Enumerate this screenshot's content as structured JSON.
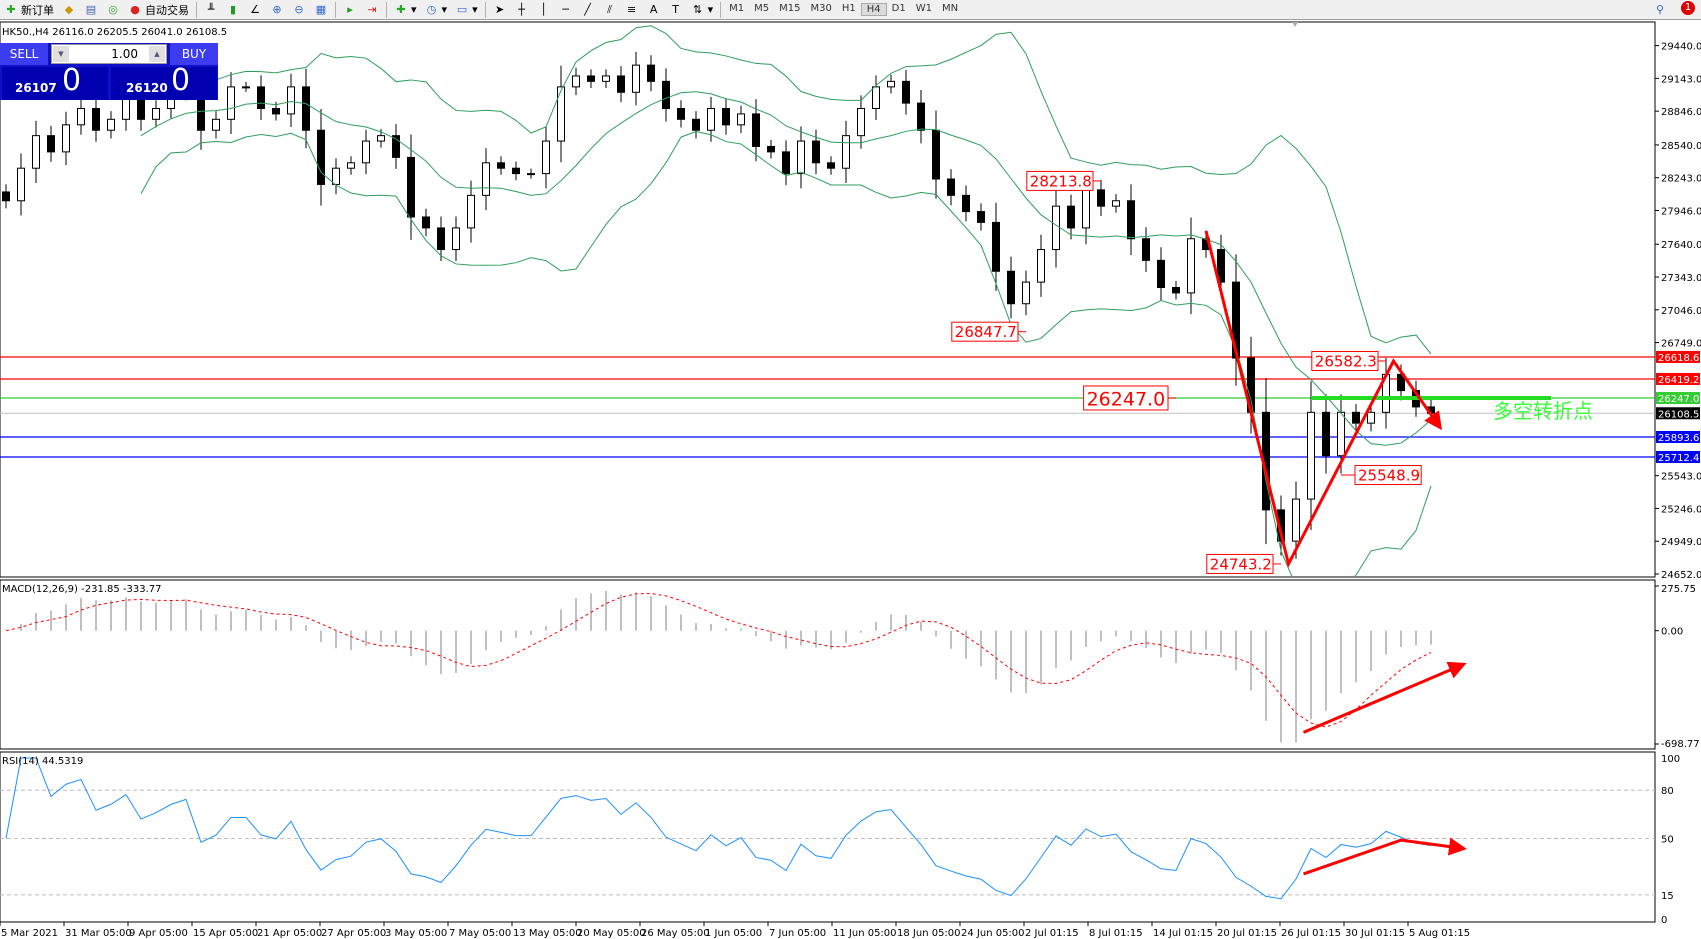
{
  "toolbar": {
    "new_order": "新订单",
    "auto_trading": "自动交易",
    "timeframes": [
      "M1",
      "M5",
      "M15",
      "M30",
      "H1",
      "H4",
      "D1",
      "W1",
      "MN"
    ],
    "active_timeframe": "H4",
    "alert_count": "1"
  },
  "chart_header": "HK50.,H4  26116.0 26205.5 26041.0 26108.5",
  "trade_panel": {
    "sell_label": "SELL",
    "buy_label": "BUY",
    "lot": "1.00",
    "sell_big": "26107",
    "sell_frac": "0",
    "buy_big": "26120",
    "buy_frac": "0"
  },
  "colors": {
    "bull": "#ffffff",
    "bear": "#000000",
    "bands": "#2e9e5e",
    "annotation": "#ff0000",
    "turn_text": "#33ff33",
    "macd_signal": "#ff0000",
    "macd_hist": "#c0c0c0",
    "rsi": "#1e90ff"
  },
  "chart_data": [
    {
      "type": "candlestick",
      "symbol": "HK50.",
      "timeframe": "H4",
      "closes": [
        28034,
        28329,
        28624,
        28477,
        28722,
        28870,
        28673,
        28772,
        28968,
        28772,
        28870,
        29017,
        29116,
        28673,
        28772,
        29066,
        29066,
        28870,
        28821,
        29066,
        28673,
        28182,
        28329,
        28378,
        28575,
        28624,
        28427,
        27887,
        27788,
        27592,
        27788,
        28083,
        28378,
        28329,
        28280,
        28280,
        28575,
        29066,
        29165,
        29116,
        29165,
        29017,
        29263,
        29116,
        28870,
        28772,
        28673,
        28870,
        28722,
        28821,
        28526,
        28477,
        28280,
        28575,
        28378,
        28329,
        28624,
        28870,
        29066,
        29116,
        28919,
        28673,
        28231,
        28083,
        27936,
        27838,
        27395,
        27101,
        27297,
        27592,
        27985,
        27788,
        28133,
        27985,
        28034,
        27690,
        27494,
        27248,
        27199,
        27690,
        27592,
        27297,
        26609,
        26117,
        25233,
        24950,
        25331,
        26117,
        25724,
        26117,
        26019,
        26117,
        26461,
        26314,
        26166,
        26108.5
      ],
      "ylim": [
        24652,
        29440
      ],
      "y_ticks": [
        "29440.0",
        "29143.0",
        "28846.0",
        "28540.0",
        "28243.0",
        "27946.0",
        "27640.0",
        "27343.0",
        "27046.0",
        "26749.0",
        "25543.0",
        "25246.0",
        "24949.0",
        "24652.0"
      ],
      "overlay": "Bollinger Bands",
      "hlines": [
        {
          "price": 26618.6,
          "label": "26618.6",
          "color": "#ff0000"
        },
        {
          "price": 26419.2,
          "label": "26419.2",
          "color": "#ff0000"
        },
        {
          "price": 26247.0,
          "label": "26247.0",
          "color": "#33cc33"
        },
        {
          "price": 26108.5,
          "label": "26108.5",
          "color": "#c0c0c0",
          "tag": "#000000"
        },
        {
          "price": 25893.6,
          "label": "25893.6",
          "color": "#0000ff"
        },
        {
          "price": 25712.4,
          "label": "25712.4",
          "color": "#0000ff"
        }
      ],
      "annotations": [
        {
          "text": "28213.8",
          "index": 73,
          "price": 28213.8,
          "side": "left"
        },
        {
          "text": "26847.7",
          "index": 68,
          "price": 26847.7,
          "side": "left"
        },
        {
          "text": "26582.3",
          "index": 92,
          "price": 26582.3,
          "side": "left"
        },
        {
          "text": "26247.0",
          "index": 78,
          "price": 26247.0,
          "side": "left",
          "big": true
        },
        {
          "text": "25548.9",
          "index": 89,
          "price": 25548.9,
          "side": "right"
        },
        {
          "text": "24743.2",
          "index": 85,
          "price": 24743.2,
          "side": "left"
        }
      ],
      "turn_label": "多空转折点",
      "turn_line": {
        "price": 26247.0,
        "from_index": 87,
        "to_index": 103
      },
      "arrow_path": [
        [
          80,
          27760
        ],
        [
          85.5,
          24743
        ],
        [
          92.5,
          26582
        ],
        [
          95.5,
          26000
        ]
      ]
    },
    {
      "type": "macd",
      "label": "MACD(12,26,9) -231.85 -333.77",
      "ylim": [
        -698.77,
        275.75
      ],
      "y_ticks": [
        "275.75",
        "0.00",
        "-698.77"
      ],
      "arrow": [
        [
          86.5,
          -627
        ],
        [
          97,
          -214
        ]
      ]
    },
    {
      "type": "rsi",
      "label": "RSI(14) 44.5319",
      "ylim": [
        0,
        100
      ],
      "y_ticks": [
        "100",
        "80",
        "50",
        "15",
        "0"
      ],
      "levels": [
        80,
        50,
        15
      ],
      "arrow_path": [
        [
          86.5,
          28
        ],
        [
          93,
          49
        ],
        [
          97,
          44
        ]
      ]
    },
    {
      "type": "time_axis",
      "labels": [
        "5 Mar 2021",
        "31 Mar 05:00",
        "9 Apr 05:00",
        "15 Apr 05:00",
        "21 Apr 05:00",
        "27 Apr 05:00",
        "3 May 05:00",
        "7 May 05:00",
        "13 May 05:00",
        "20 May 05:00",
        "26 May 05:00",
        "1 Jun 05:00",
        "7 Jun 05:00",
        "11 Jun 05:00",
        "18 Jun 05:00",
        "24 Jun 05:00",
        "2 Jul 01:15",
        "8 Jul 01:15",
        "14 Jul 01:15",
        "20 Jul 01:15",
        "26 Jul 01:15",
        "30 Jul 01:15",
        "5 Aug 01:15"
      ]
    }
  ]
}
